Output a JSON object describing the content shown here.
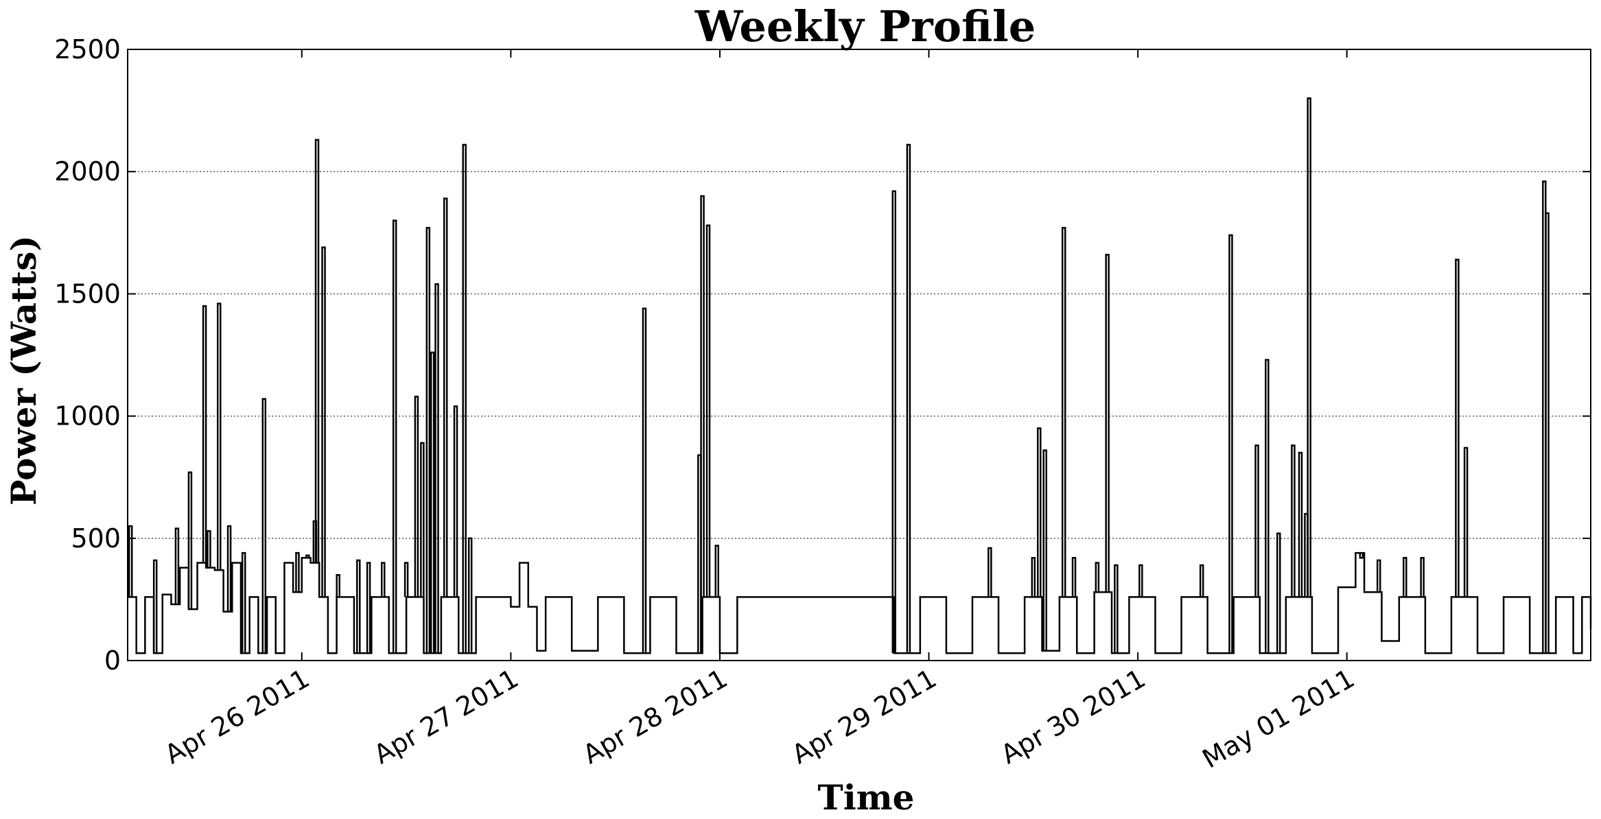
{
  "chart_data": {
    "type": "line",
    "title": "Weekly Profile",
    "xlabel": "Time",
    "ylabel": "Power (Watts)",
    "xlim": [
      "2011-04-25T04:00",
      "2011-05-02T04:00"
    ],
    "ylim": [
      0,
      2500
    ],
    "yticks": [
      0,
      500,
      1000,
      1500,
      2000,
      2500
    ],
    "xticks": [
      {
        "value": "2011-04-26T00:00",
        "label": "Apr 26 2011"
      },
      {
        "value": "2011-04-27T00:00",
        "label": "Apr 27 2011"
      },
      {
        "value": "2011-04-28T00:00",
        "label": "Apr 28 2011"
      },
      {
        "value": "2011-04-29T00:00",
        "label": "Apr 29 2011"
      },
      {
        "value": "2011-04-30T00:00",
        "label": "Apr 30 2011"
      },
      {
        "value": "2011-05-01T00:00",
        "label": "May 01 2011"
      }
    ],
    "grid": "y-dotted",
    "color": "#000000",
    "series": [
      {
        "baseline_points": [
          [
            "2011-04-25T04:00",
            260
          ],
          [
            "2011-04-25T05:00",
            30
          ],
          [
            "2011-04-25T06:00",
            260
          ],
          [
            "2011-04-25T07:00",
            30
          ],
          [
            "2011-04-25T08:00",
            270
          ],
          [
            "2011-04-25T09:00",
            230
          ],
          [
            "2011-04-25T10:00",
            380
          ],
          [
            "2011-04-25T11:00",
            210
          ],
          [
            "2011-04-25T12:00",
            400
          ],
          [
            "2011-04-25T13:00",
            380
          ],
          [
            "2011-04-25T14:00",
            370
          ],
          [
            "2011-04-25T15:00",
            200
          ],
          [
            "2011-04-25T16:00",
            400
          ],
          [
            "2011-04-25T17:00",
            30
          ],
          [
            "2011-04-25T18:00",
            260
          ],
          [
            "2011-04-25T19:00",
            30
          ],
          [
            "2011-04-25T20:00",
            260
          ],
          [
            "2011-04-25T21:00",
            30
          ],
          [
            "2011-04-25T22:00",
            400
          ],
          [
            "2011-04-25T23:00",
            280
          ],
          [
            "2011-04-26T00:00",
            420
          ],
          [
            "2011-04-26T01:00",
            400
          ],
          [
            "2011-04-26T02:00",
            260
          ],
          [
            "2011-04-26T03:00",
            30
          ],
          [
            "2011-04-26T04:00",
            260
          ],
          [
            "2011-04-26T06:00",
            30
          ],
          [
            "2011-04-26T08:00",
            260
          ],
          [
            "2011-04-26T10:00",
            30
          ],
          [
            "2011-04-26T12:00",
            260
          ],
          [
            "2011-04-26T14:00",
            30
          ],
          [
            "2011-04-26T16:00",
            260
          ],
          [
            "2011-04-26T18:00",
            30
          ],
          [
            "2011-04-26T20:00",
            260
          ],
          [
            "2011-04-26T22:00",
            260
          ],
          [
            "2011-04-27T00:00",
            220
          ],
          [
            "2011-04-27T01:00",
            400
          ],
          [
            "2011-04-27T02:00",
            220
          ],
          [
            "2011-04-27T03:00",
            40
          ],
          [
            "2011-04-27T04:00",
            260
          ],
          [
            "2011-04-27T07:00",
            40
          ],
          [
            "2011-04-27T10:00",
            260
          ],
          [
            "2011-04-27T13:00",
            30
          ],
          [
            "2011-04-27T16:00",
            260
          ],
          [
            "2011-04-27T19:00",
            30
          ],
          [
            "2011-04-27T22:00",
            260
          ],
          [
            "2011-04-28T00:00",
            30
          ],
          [
            "2011-04-28T02:00",
            260
          ],
          [
            "2011-04-28T05:00",
            260
          ],
          [
            "2011-04-28T08:00",
            260
          ],
          [
            "2011-04-28T11:00",
            260
          ],
          [
            "2011-04-28T14:00",
            260
          ],
          [
            "2011-04-28T17:00",
            260
          ],
          [
            "2011-04-28T20:00",
            30
          ],
          [
            "2011-04-28T23:00",
            260
          ],
          [
            "2011-04-29T02:00",
            30
          ],
          [
            "2011-04-29T05:00",
            260
          ],
          [
            "2011-04-29T08:00",
            30
          ],
          [
            "2011-04-29T11:00",
            260
          ],
          [
            "2011-04-29T13:00",
            40
          ],
          [
            "2011-04-29T15:00",
            260
          ],
          [
            "2011-04-29T17:00",
            30
          ],
          [
            "2011-04-29T19:00",
            280
          ],
          [
            "2011-04-29T21:00",
            30
          ],
          [
            "2011-04-29T23:00",
            260
          ],
          [
            "2011-04-30T02:00",
            30
          ],
          [
            "2011-04-30T05:00",
            260
          ],
          [
            "2011-04-30T08:00",
            30
          ],
          [
            "2011-04-30T11:00",
            260
          ],
          [
            "2011-04-30T14:00",
            30
          ],
          [
            "2011-04-30T17:00",
            260
          ],
          [
            "2011-04-30T20:00",
            30
          ],
          [
            "2011-04-30T23:00",
            300
          ],
          [
            "2011-05-01T01:00",
            440
          ],
          [
            "2011-05-01T02:00",
            280
          ],
          [
            "2011-05-01T04:00",
            80
          ],
          [
            "2011-05-01T06:00",
            260
          ],
          [
            "2011-05-01T09:00",
            30
          ],
          [
            "2011-05-01T12:00",
            260
          ],
          [
            "2011-05-01T15:00",
            30
          ],
          [
            "2011-05-01T18:00",
            260
          ],
          [
            "2011-05-01T21:00",
            30
          ],
          [
            "2011-05-02T00:00",
            260
          ],
          [
            "2011-05-02T02:00",
            30
          ],
          [
            "2011-05-02T03:00",
            260
          ],
          [
            "2011-05-02T04:00",
            130
          ]
        ],
        "spikes": [
          [
            "2011-04-25T04:20",
            550
          ],
          [
            "2011-04-25T07:10",
            410
          ],
          [
            "2011-04-25T09:40",
            540
          ],
          [
            "2011-04-25T11:10",
            770
          ],
          [
            "2011-04-25T12:50",
            1450
          ],
          [
            "2011-04-25T13:20",
            530
          ],
          [
            "2011-04-25T14:30",
            1460
          ],
          [
            "2011-04-25T15:40",
            550
          ],
          [
            "2011-04-25T17:20",
            440
          ],
          [
            "2011-04-25T19:40",
            1070
          ],
          [
            "2011-04-25T23:30",
            440
          ],
          [
            "2011-04-26T00:40",
            430
          ],
          [
            "2011-04-26T01:30",
            570
          ],
          [
            "2011-04-26T01:45",
            2130
          ],
          [
            "2011-04-26T02:30",
            1690
          ],
          [
            "2011-04-26T04:10",
            350
          ],
          [
            "2011-04-26T06:30",
            410
          ],
          [
            "2011-04-26T07:40",
            400
          ],
          [
            "2011-04-26T09:20",
            400
          ],
          [
            "2011-04-26T10:40",
            1800
          ],
          [
            "2011-04-26T12:00",
            400
          ],
          [
            "2011-04-26T13:10",
            1080
          ],
          [
            "2011-04-26T13:50",
            890
          ],
          [
            "2011-04-26T14:30",
            1770
          ],
          [
            "2011-04-26T15:00",
            1260
          ],
          [
            "2011-04-26T15:30",
            1540
          ],
          [
            "2011-04-26T16:30",
            1890
          ],
          [
            "2011-04-26T17:40",
            1040
          ],
          [
            "2011-04-26T18:40",
            2110
          ],
          [
            "2011-04-26T19:20",
            500
          ],
          [
            "2011-04-27T15:20",
            1440
          ],
          [
            "2011-04-27T21:40",
            840
          ],
          [
            "2011-04-27T22:00",
            1900
          ],
          [
            "2011-04-27T22:40",
            1780
          ],
          [
            "2011-04-27T23:40",
            470
          ],
          [
            "2011-04-28T20:00",
            1920
          ],
          [
            "2011-04-28T21:40",
            2110
          ],
          [
            "2011-04-29T07:00",
            460
          ],
          [
            "2011-04-29T12:00",
            420
          ],
          [
            "2011-04-29T12:40",
            950
          ],
          [
            "2011-04-29T13:20",
            860
          ],
          [
            "2011-04-29T15:30",
            1770
          ],
          [
            "2011-04-29T16:40",
            420
          ],
          [
            "2011-04-29T19:20",
            400
          ],
          [
            "2011-04-29T20:30",
            1660
          ],
          [
            "2011-04-29T21:30",
            390
          ],
          [
            "2011-04-30T00:20",
            390
          ],
          [
            "2011-04-30T07:20",
            390
          ],
          [
            "2011-04-30T10:40",
            1740
          ],
          [
            "2011-04-30T13:40",
            880
          ],
          [
            "2011-04-30T14:50",
            1230
          ],
          [
            "2011-04-30T16:10",
            520
          ],
          [
            "2011-04-30T17:50",
            880
          ],
          [
            "2011-04-30T18:40",
            850
          ],
          [
            "2011-04-30T19:20",
            600
          ],
          [
            "2011-04-30T19:40",
            2300
          ],
          [
            "2011-05-01T01:40",
            420
          ],
          [
            "2011-05-01T03:40",
            410
          ],
          [
            "2011-05-01T06:40",
            420
          ],
          [
            "2011-05-01T08:40",
            420
          ],
          [
            "2011-05-01T12:40",
            1640
          ],
          [
            "2011-05-01T13:40",
            870
          ],
          [
            "2011-05-01T22:40",
            1960
          ],
          [
            "2011-05-01T23:00",
            1830
          ]
        ]
      }
    ]
  }
}
